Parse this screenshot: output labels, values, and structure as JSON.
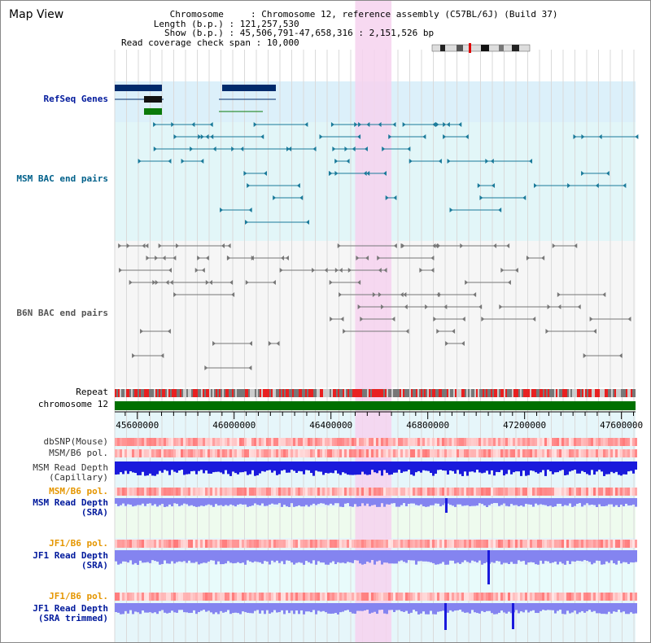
{
  "page": {
    "title": "Map View"
  },
  "header": {
    "chromosome_key": "Chromosome",
    "chromosome_value": "Chromosome 12, reference assembly (C57BL/6J) (Build 37)",
    "length_key": "Length (b.p.)",
    "length_value": "121,257,530",
    "show_key": "Show (b.p.)",
    "show_value": "45,506,791-47,658,316 : 2,151,526 bp",
    "span_key": "Read coverage check span",
    "span_value": "10,000"
  },
  "tracks": {
    "refseq": "RefSeq Genes",
    "msm_bac": "MSM BAC end pairs",
    "b6n_bac": "B6N BAC end pairs",
    "repeat": "Repeat",
    "chromosome": "chromosome 12",
    "dbsnp": "dbSNP(Mouse)",
    "msm_b6_pol_1": "MSM/B6 pol.",
    "msm_depth_cap_1": "MSM Read Depth",
    "msm_depth_cap_2": "(Capillary)",
    "msm_b6_pol_2": "MSM/B6 pol.",
    "msm_depth_sra_1": "MSM Read Depth",
    "msm_depth_sra_2": "(SRA)",
    "jf1_b6_pol_1": "JF1/B6 pol.",
    "jf1_depth_sra_1": "JF1 Read Depth",
    "jf1_depth_sra_2": "(SRA)",
    "jf1_b6_pol_2": "JF1/B6 pol.",
    "jf1_depth_trim_1": "JF1 Read Depth",
    "jf1_depth_trim_2": "(SRA trimmed)"
  },
  "axis": {
    "ticks": [
      {
        "pos": 45600000,
        "label": "45600000"
      },
      {
        "pos": 46000000,
        "label": "46000000"
      },
      {
        "pos": 46400000,
        "label": "46400000"
      },
      {
        "pos": 46800000,
        "label": "46800000"
      },
      {
        "pos": 47200000,
        "label": "47200000"
      },
      {
        "pos": 47600000,
        "label": "47600000"
      }
    ],
    "start": 45506791,
    "end": 47658316
  },
  "highlight": {
    "start": 46500000,
    "end": 46650000
  },
  "colors": {
    "refseq_bg": "#dcf0fa",
    "msm_bg": "#e2f6f8",
    "b6n_bg": "#f6f6f6",
    "highlight": "#f6d2ee",
    "gene": "#002a6b",
    "gene_green": "#0a7a0a",
    "msm_pair": "#1a7a9a",
    "b6n_pair": "#777777",
    "chromosome_bar": "#007000",
    "depth_dark": "#1a1adc",
    "depth_light": "#8484f0"
  }
}
